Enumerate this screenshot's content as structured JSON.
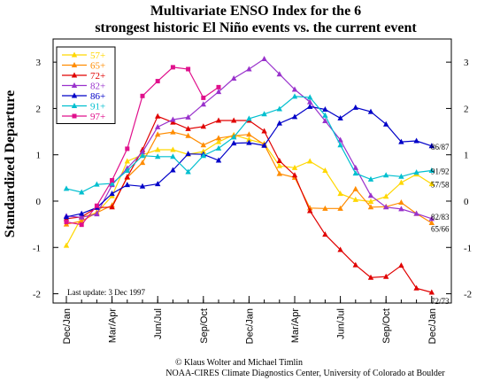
{
  "chart_data": {
    "type": "line",
    "title": [
      "Multivariate ENSO Index for the 6",
      "strongest historic El Niño events vs. the current event"
    ],
    "ylabel": "Standardized Departure",
    "ylim": [
      -2.2,
      3.5
    ],
    "yticks": [
      "-2",
      "-1",
      "0",
      "1",
      "2",
      "3"
    ],
    "x_tick_labels": [
      "Dec/Jan",
      "Mar/Apr",
      "Jun/Jul",
      "Sep/Oct",
      "Dec/Jan",
      "Mar/Apr",
      "Jun/Jul",
      "Sep/Oct",
      "Dec/Jan"
    ],
    "x_tick_index": [
      0,
      3,
      6,
      9,
      12,
      15,
      18,
      21,
      24
    ],
    "grid": false,
    "legend_position": "top-left",
    "last_update": "Last update: 3 Dec 1997",
    "credits": [
      "© Klaus Wolter and Michael Timlin",
      "NOAA-CIRES Climate Diagnostics Center, University of Colorado at Boulder"
    ],
    "end_labels": [
      {
        "text": "86/87",
        "y": 1.19
      },
      {
        "text": "91/92",
        "y": 0.66
      },
      {
        "text": "57/58",
        "y": 0.37
      },
      {
        "text": "82/83",
        "y": -0.33
      },
      {
        "text": "65/66",
        "y": -0.58
      },
      {
        "text": "72/73",
        "y": -2.14
      }
    ],
    "series": [
      {
        "name": "57+",
        "color": "#ffd700",
        "marker": "triangle-up",
        "values": [
          -0.96,
          -0.35,
          -0.25,
          0.11,
          0.86,
          1.0,
          1.11,
          1.11,
          1.01,
          1.07,
          1.28,
          1.43,
          1.33,
          1.24,
          0.76,
          0.72,
          0.86,
          0.66,
          0.16,
          0.03,
          -0.01,
          0.1,
          0.4,
          0.58,
          0.37
        ]
      },
      {
        "name": "65+",
        "color": "#ff8c00",
        "marker": "triangle-up",
        "values": [
          -0.5,
          -0.43,
          -0.25,
          -0.09,
          0.51,
          0.83,
          1.44,
          1.49,
          1.41,
          1.21,
          1.36,
          1.41,
          1.44,
          1.22,
          0.59,
          0.51,
          -0.15,
          -0.16,
          -0.16,
          0.26,
          -0.13,
          -0.12,
          -0.03,
          -0.27,
          -0.47
        ]
      },
      {
        "name": "72+",
        "color": "#e00000",
        "marker": "triangle-up",
        "values": [
          -0.38,
          -0.34,
          -0.14,
          -0.13,
          0.52,
          1.11,
          1.83,
          1.7,
          1.56,
          1.61,
          1.74,
          1.74,
          1.74,
          1.51,
          0.87,
          0.56,
          -0.21,
          -0.72,
          -1.05,
          -1.38,
          -1.65,
          -1.63,
          -1.39,
          -1.88,
          -1.97
        ]
      },
      {
        "name": "82+",
        "color": "#9932cc",
        "marker": "triangle-up",
        "values": [
          -0.32,
          -0.35,
          -0.28,
          0.35,
          0.71,
          1.06,
          1.6,
          1.76,
          1.81,
          2.09,
          2.36,
          2.65,
          2.85,
          3.07,
          2.74,
          2.41,
          2.14,
          1.73,
          1.32,
          0.72,
          0.12,
          -0.13,
          -0.17,
          -0.27,
          -0.38
        ]
      },
      {
        "name": "86+",
        "color": "#0000c8",
        "marker": "triangle-up",
        "values": [
          -0.34,
          -0.27,
          -0.14,
          0.16,
          0.35,
          0.32,
          0.37,
          0.67,
          1.02,
          1.01,
          0.88,
          1.25,
          1.26,
          1.2,
          1.68,
          1.82,
          2.04,
          1.98,
          1.79,
          2.02,
          1.93,
          1.66,
          1.28,
          1.3,
          1.19
        ]
      },
      {
        "name": "91+",
        "color": "#00bfcf",
        "marker": "triangle-up",
        "values": [
          0.27,
          0.19,
          0.36,
          0.38,
          0.66,
          0.98,
          0.96,
          0.96,
          0.63,
          0.98,
          1.14,
          1.38,
          1.78,
          1.88,
          1.99,
          2.26,
          2.24,
          1.85,
          1.21,
          0.6,
          0.47,
          0.56,
          0.53,
          0.62,
          0.66
        ]
      },
      {
        "name": "97+",
        "color": "#e0108c",
        "marker": "square",
        "values": [
          -0.45,
          -0.51,
          -0.1,
          0.45,
          1.13,
          2.27,
          2.59,
          2.89,
          2.85,
          2.23,
          2.46
        ]
      }
    ]
  }
}
